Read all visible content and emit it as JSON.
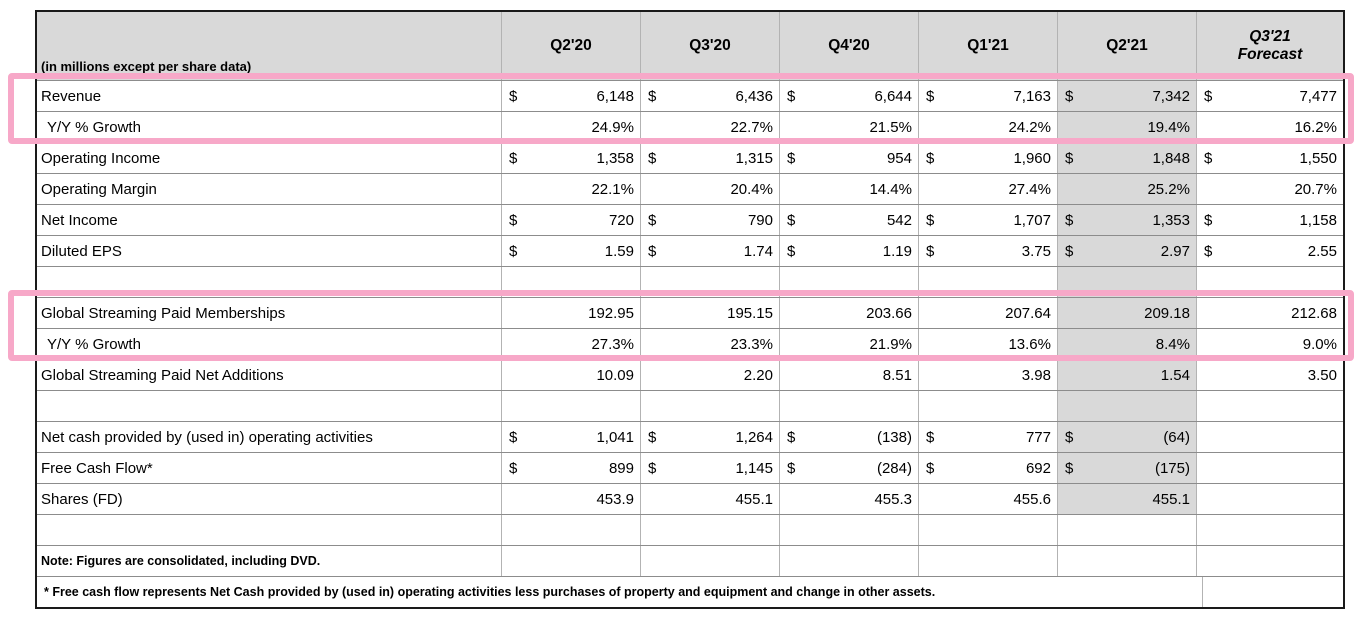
{
  "unit_label": "(in millions except per share data)",
  "columns": [
    {
      "label": "Q2'20"
    },
    {
      "label": "Q3'20"
    },
    {
      "label": "Q4'20"
    },
    {
      "label": "Q1'21"
    },
    {
      "label": "Q2'21",
      "shaded": true
    },
    {
      "label": "Q3'21",
      "sublabel": "Forecast",
      "italic": true
    }
  ],
  "rows": [
    {
      "name": "revenue",
      "label": "Revenue",
      "currency": true,
      "shade": true,
      "values": [
        "6,148",
        "6,436",
        "6,644",
        "7,163",
        "7,342",
        "7,477"
      ]
    },
    {
      "name": "revenue-yoy-growth",
      "label": "Y/Y % Growth",
      "indent": true,
      "shade": true,
      "values": [
        "24.9%",
        "22.7%",
        "21.5%",
        "24.2%",
        "19.4%",
        "16.2%"
      ]
    },
    {
      "name": "operating-income",
      "label": "Operating Income",
      "currency": true,
      "shade": true,
      "values": [
        "1,358",
        "1,315",
        "954",
        "1,960",
        "1,848",
        "1,550"
      ]
    },
    {
      "name": "operating-margin",
      "label": "Operating Margin",
      "shade": true,
      "values": [
        "22.1%",
        "20.4%",
        "14.4%",
        "27.4%",
        "25.2%",
        "20.7%"
      ]
    },
    {
      "name": "net-income",
      "label": "Net Income",
      "currency": true,
      "shade": true,
      "values": [
        "720",
        "790",
        "542",
        "1,707",
        "1,353",
        "1,158"
      ]
    },
    {
      "name": "diluted-eps",
      "label": "Diluted EPS",
      "currency": true,
      "shade": true,
      "values": [
        "1.59",
        "1.74",
        "1.19",
        "3.75",
        "2.97",
        "2.55"
      ]
    },
    {
      "name": "spacer-1",
      "blank": true,
      "shade": true,
      "values": [
        "",
        "",
        "",
        "",
        "",
        ""
      ]
    },
    {
      "name": "global-streaming-paid-memberships",
      "label": "Global Streaming Paid Memberships",
      "shade": true,
      "values": [
        "192.95",
        "195.15",
        "203.66",
        "207.64",
        "209.18",
        "212.68"
      ]
    },
    {
      "name": "memberships-yoy-growth",
      "label": "Y/Y % Growth",
      "indent": true,
      "shade": true,
      "values": [
        "27.3%",
        "23.3%",
        "21.9%",
        "13.6%",
        "8.4%",
        "9.0%"
      ]
    },
    {
      "name": "global-streaming-paid-net-additions",
      "label": "Global Streaming Paid Net Additions",
      "shade": true,
      "values": [
        "10.09",
        "2.20",
        "8.51",
        "3.98",
        "1.54",
        "3.50"
      ]
    },
    {
      "name": "spacer-2",
      "blank": true,
      "shade": true,
      "values": [
        "",
        "",
        "",
        "",
        "",
        ""
      ]
    },
    {
      "name": "net-cash-operating-activities",
      "label": "Net cash provided by (used in) operating activities",
      "currency": true,
      "shade": true,
      "values": [
        "1,041",
        "1,264",
        "(138)",
        "777",
        "(64)",
        ""
      ]
    },
    {
      "name": "free-cash-flow",
      "label": "Free Cash Flow*",
      "currency": true,
      "shade": true,
      "values": [
        "899",
        "1,145",
        "(284)",
        "692",
        "(175)",
        ""
      ]
    },
    {
      "name": "shares-fd",
      "label": "Shares (FD)",
      "shade": true,
      "values": [
        "453.9",
        "455.1",
        "455.3",
        "455.6",
        "455.1",
        ""
      ]
    },
    {
      "name": "spacer-3",
      "blank": true,
      "shade": false,
      "values": [
        "",
        "",
        "",
        "",
        "",
        ""
      ]
    }
  ],
  "currency_symbol": "$",
  "notes": {
    "note": "Note: Figures are consolidated, including DVD.",
    "footnote": "* Free cash flow represents Net Cash provided by (used in) operating activities less purchases of property and equipment and change in other assets."
  },
  "colors": {
    "shade-gray": "#d9d9d9",
    "highlight-pink": "#f7a8c8",
    "grid-h": "#8c8c8c",
    "grid-v": "#b3b3b3",
    "outer": "#1a1a1a"
  }
}
